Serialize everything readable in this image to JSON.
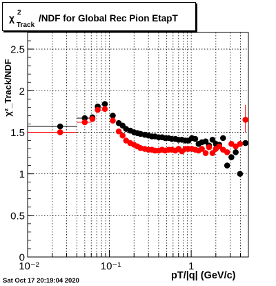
{
  "title": {
    "chi": "χ",
    "superscript": "2",
    "subscript": "Track",
    "rest": "/NDF for Global Rec Pion EtapT"
  },
  "timestamp": "Sat Oct 17 20:19:04 2020",
  "chart_data": {
    "type": "scatter",
    "title": "χ²_Track/NDF for Global Rec Pion EtapT",
    "xlabel": "pT/|q| (GeV/c)",
    "ylabel": "χ²_Track/NDF",
    "xscale": "log",
    "xlim": [
      0.01,
      5.0
    ],
    "ylim": [
      0,
      2.7
    ],
    "grid": true,
    "x_tick_labels": [
      "10⁻²",
      "10⁻¹",
      "1"
    ],
    "y_tick_labels": [
      "0",
      "0.5",
      "1",
      "1.5",
      "2",
      "2.5"
    ],
    "series": [
      {
        "color": "#000000",
        "points": [
          {
            "x": 0.025,
            "y": 1.57,
            "xerr": [
              0.01,
              0.04
            ]
          },
          {
            "x": 0.05,
            "y": 1.67,
            "xerr": [
              0.04,
              0.06
            ]
          },
          {
            "x": 0.062,
            "y": 1.68
          },
          {
            "x": 0.072,
            "y": 1.81
          },
          {
            "x": 0.088,
            "y": 1.84
          },
          {
            "x": 0.11,
            "y": 1.7
          },
          {
            "x": 0.13,
            "y": 1.61
          },
          {
            "x": 0.145,
            "y": 1.58
          },
          {
            "x": 0.16,
            "y": 1.54
          },
          {
            "x": 0.18,
            "y": 1.52
          },
          {
            "x": 0.2,
            "y": 1.5
          },
          {
            "x": 0.22,
            "y": 1.49
          },
          {
            "x": 0.24,
            "y": 1.48
          },
          {
            "x": 0.27,
            "y": 1.47
          },
          {
            "x": 0.3,
            "y": 1.46
          },
          {
            "x": 0.33,
            "y": 1.45
          },
          {
            "x": 0.36,
            "y": 1.45
          },
          {
            "x": 0.4,
            "y": 1.44
          },
          {
            "x": 0.44,
            "y": 1.44
          },
          {
            "x": 0.48,
            "y": 1.43
          },
          {
            "x": 0.53,
            "y": 1.43
          },
          {
            "x": 0.58,
            "y": 1.42
          },
          {
            "x": 0.64,
            "y": 1.42
          },
          {
            "x": 0.7,
            "y": 1.41
          },
          {
            "x": 0.77,
            "y": 1.41
          },
          {
            "x": 0.85,
            "y": 1.4
          },
          {
            "x": 0.93,
            "y": 1.4
          },
          {
            "x": 1.02,
            "y": 1.43
          },
          {
            "x": 1.12,
            "y": 1.42
          },
          {
            "x": 1.23,
            "y": 1.36
          },
          {
            "x": 1.35,
            "y": 1.38
          },
          {
            "x": 1.5,
            "y": 1.39
          },
          {
            "x": 1.65,
            "y": 1.34
          },
          {
            "x": 1.82,
            "y": 1.41
          },
          {
            "x": 2.0,
            "y": 1.36
          },
          {
            "x": 2.2,
            "y": 1.35
          },
          {
            "x": 2.45,
            "y": 1.43
          },
          {
            "x": 2.75,
            "y": 1.1
          },
          {
            "x": 3.1,
            "y": 1.2
          },
          {
            "x": 3.5,
            "y": 1.26
          },
          {
            "x": 3.95,
            "y": 1.0
          },
          {
            "x": 4.6,
            "y": 1.37
          }
        ]
      },
      {
        "color": "#ff0000",
        "points": [
          {
            "x": 0.025,
            "y": 1.5,
            "xerr": [
              0.01,
              0.04
            ]
          },
          {
            "x": 0.05,
            "y": 1.62,
            "xerr": [
              0.04,
              0.06
            ]
          },
          {
            "x": 0.062,
            "y": 1.66
          },
          {
            "x": 0.072,
            "y": 1.77
          },
          {
            "x": 0.088,
            "y": 1.78
          },
          {
            "x": 0.11,
            "y": 1.64
          },
          {
            "x": 0.13,
            "y": 1.51
          },
          {
            "x": 0.145,
            "y": 1.46
          },
          {
            "x": 0.16,
            "y": 1.4
          },
          {
            "x": 0.18,
            "y": 1.37
          },
          {
            "x": 0.2,
            "y": 1.35
          },
          {
            "x": 0.22,
            "y": 1.33
          },
          {
            "x": 0.24,
            "y": 1.31
          },
          {
            "x": 0.27,
            "y": 1.3
          },
          {
            "x": 0.3,
            "y": 1.29
          },
          {
            "x": 0.33,
            "y": 1.29
          },
          {
            "x": 0.36,
            "y": 1.28
          },
          {
            "x": 0.4,
            "y": 1.28
          },
          {
            "x": 0.44,
            "y": 1.29
          },
          {
            "x": 0.48,
            "y": 1.28
          },
          {
            "x": 0.53,
            "y": 1.29
          },
          {
            "x": 0.58,
            "y": 1.29
          },
          {
            "x": 0.64,
            "y": 1.28
          },
          {
            "x": 0.7,
            "y": 1.3
          },
          {
            "x": 0.77,
            "y": 1.27
          },
          {
            "x": 0.85,
            "y": 1.3
          },
          {
            "x": 0.93,
            "y": 1.3
          },
          {
            "x": 1.02,
            "y": 1.3
          },
          {
            "x": 1.12,
            "y": 1.29
          },
          {
            "x": 1.23,
            "y": 1.28
          },
          {
            "x": 1.35,
            "y": 1.3
          },
          {
            "x": 1.5,
            "y": 1.25
          },
          {
            "x": 1.65,
            "y": 1.32
          },
          {
            "x": 1.82,
            "y": 1.25
          },
          {
            "x": 2.0,
            "y": 1.3
          },
          {
            "x": 2.2,
            "y": 1.33
          },
          {
            "x": 2.45,
            "y": 1.29
          },
          {
            "x": 2.75,
            "y": 1.26
          },
          {
            "x": 3.1,
            "y": 1.36
          },
          {
            "x": 3.5,
            "y": 1.33
          },
          {
            "x": 3.95,
            "y": 1.36
          },
          {
            "x": 4.6,
            "y": 1.65,
            "yerr": [
              0.15,
              0.18
            ]
          }
        ]
      }
    ]
  }
}
